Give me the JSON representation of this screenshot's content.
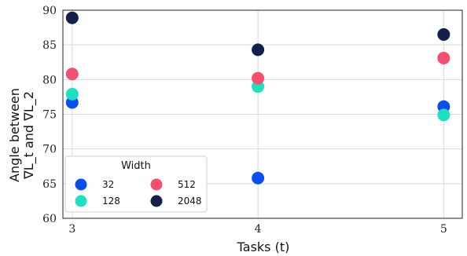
{
  "chart_data": {
    "type": "scatter",
    "title": "",
    "xlabel": "Tasks (t)",
    "ylabel_line1": "Angle between",
    "ylabel_line2": "∇L_t and ∇L_2",
    "xlim": [
      2.95,
      5.1
    ],
    "ylim": [
      60,
      90
    ],
    "xticks": [
      3,
      4,
      5
    ],
    "yticks": [
      60,
      65,
      70,
      75,
      80,
      85,
      90
    ],
    "grid": true,
    "legend_title": "Width",
    "legend_position": "lower-left",
    "series": [
      {
        "name": "32",
        "color": "#0a4ef0",
        "points": [
          {
            "x": 3,
            "y": 76.7
          },
          {
            "x": 4,
            "y": 65.8
          },
          {
            "x": 5,
            "y": 76.1
          }
        ]
      },
      {
        "name": "128",
        "color": "#1de0c0",
        "points": [
          {
            "x": 3,
            "y": 77.9
          },
          {
            "x": 4,
            "y": 79.0
          },
          {
            "x": 5,
            "y": 74.9
          }
        ]
      },
      {
        "name": "512",
        "color": "#f2506e",
        "points": [
          {
            "x": 3,
            "y": 80.8
          },
          {
            "x": 4,
            "y": 80.2
          },
          {
            "x": 5,
            "y": 83.1
          }
        ]
      },
      {
        "name": "2048",
        "color": "#12204a",
        "points": [
          {
            "x": 3,
            "y": 88.9
          },
          {
            "x": 4,
            "y": 84.3
          },
          {
            "x": 5,
            "y": 86.5
          }
        ]
      }
    ]
  }
}
